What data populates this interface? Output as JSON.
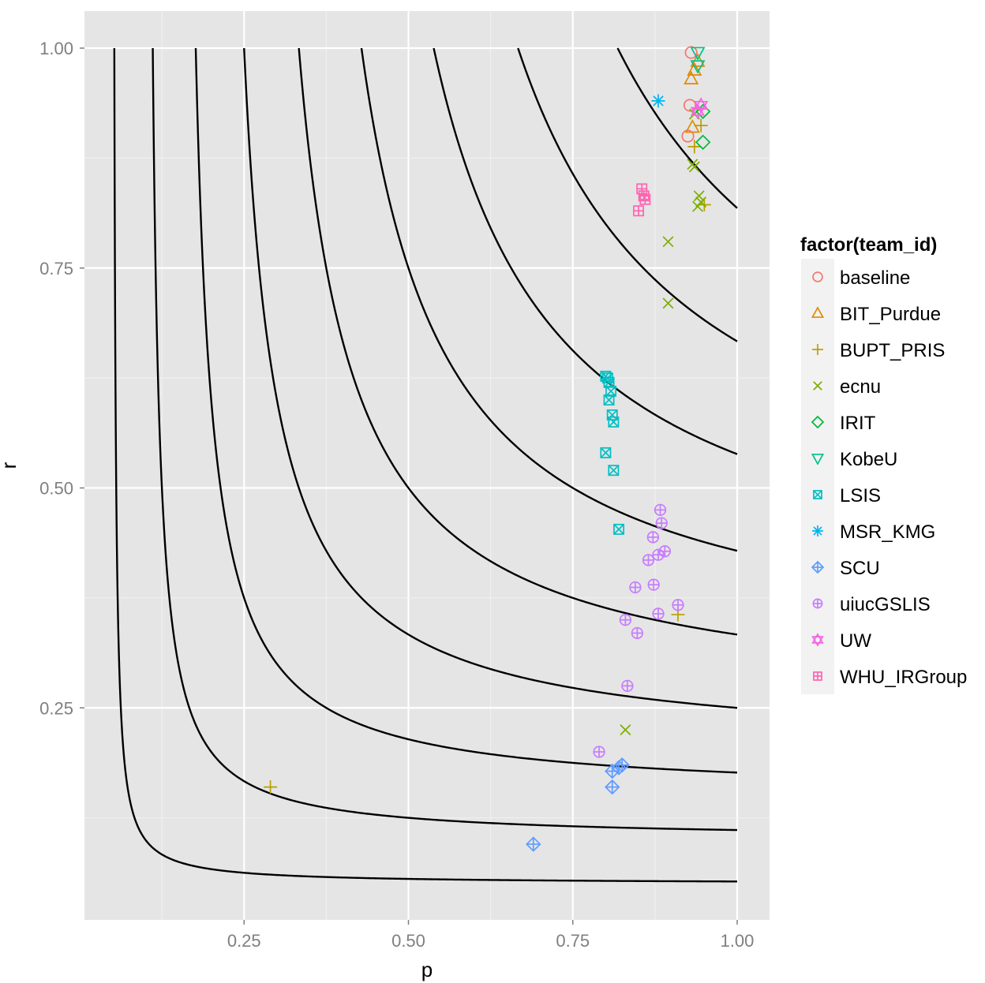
{
  "chart_data": {
    "type": "scatter",
    "title": "",
    "xlabel": "p",
    "ylabel": "r",
    "xlim": [
      0.0,
      1.045
    ],
    "ylim": [
      0.0,
      1.045
    ],
    "x_ticks": [
      0.25,
      0.5,
      0.75,
      1.0
    ],
    "x_tick_labels": [
      "0.25",
      "0.50",
      "0.75",
      "1.00"
    ],
    "y_ticks": [
      0.25,
      0.5,
      0.75,
      1.0
    ],
    "y_tick_labels": [
      "0.25",
      "0.50",
      "0.75",
      "1.00"
    ],
    "grid": true,
    "background": "#e5e5e5",
    "legend": {
      "title": "factor(team_id)",
      "placement": "right"
    },
    "iso_f_curves": {
      "description_values": "F-measure levels of the iso-curves",
      "levels": [
        0.1,
        0.2,
        0.3,
        0.4,
        0.5,
        0.6,
        0.7,
        0.8,
        0.9
      ],
      "color": "#000000"
    },
    "series": [
      {
        "name": "baseline",
        "color": "#F8766D",
        "shape": "circle",
        "points": [
          [
            0.93,
            0.995
          ],
          [
            0.928,
            0.935
          ],
          [
            0.925,
            0.9
          ]
        ]
      },
      {
        "name": "BIT_Purdue",
        "color": "#DE8C00",
        "shape": "triangle",
        "points": [
          [
            0.94,
            0.985
          ],
          [
            0.935,
            0.975
          ],
          [
            0.93,
            0.965
          ],
          [
            0.932,
            0.91
          ]
        ]
      },
      {
        "name": "BUPT_PRIS",
        "color": "#B79F00",
        "shape": "plus",
        "points": [
          [
            0.945,
            0.912
          ],
          [
            0.935,
            0.888
          ],
          [
            0.95,
            0.822
          ],
          [
            0.91,
            0.356
          ],
          [
            0.29,
            0.16
          ]
        ]
      },
      {
        "name": "ecnu",
        "color": "#7CAE00",
        "shape": "cross",
        "points": [
          [
            0.932,
            0.868
          ],
          [
            0.935,
            0.865
          ],
          [
            0.942,
            0.832
          ],
          [
            0.945,
            0.825
          ],
          [
            0.94,
            0.82
          ],
          [
            0.895,
            0.78
          ],
          [
            0.895,
            0.71
          ],
          [
            0.83,
            0.225
          ],
          [
            0.935,
            0.925
          ]
        ]
      },
      {
        "name": "IRIT",
        "color": "#00BA38",
        "shape": "diamond",
        "points": [
          [
            0.948,
            0.928
          ],
          [
            0.948,
            0.893
          ]
        ]
      },
      {
        "name": "KobeU",
        "color": "#00C08B",
        "shape": "triangle-down",
        "points": [
          [
            0.94,
            0.995
          ],
          [
            0.94,
            0.98
          ]
        ]
      },
      {
        "name": "LSIS",
        "color": "#00BFC4",
        "shape": "square-cross",
        "points": [
          [
            0.8,
            0.627
          ],
          [
            0.803,
            0.625
          ],
          [
            0.805,
            0.62
          ],
          [
            0.808,
            0.61
          ],
          [
            0.805,
            0.6
          ],
          [
            0.81,
            0.583
          ],
          [
            0.812,
            0.575
          ],
          [
            0.8,
            0.54
          ],
          [
            0.812,
            0.52
          ],
          [
            0.82,
            0.453
          ]
        ]
      },
      {
        "name": "MSR_KMG",
        "color": "#00B4F0",
        "shape": "asterisk",
        "points": [
          [
            0.88,
            0.94
          ]
        ]
      },
      {
        "name": "SCU",
        "color": "#619CFF",
        "shape": "diamond-plus",
        "points": [
          [
            0.825,
            0.185
          ],
          [
            0.82,
            0.182
          ],
          [
            0.81,
            0.178
          ],
          [
            0.81,
            0.16
          ],
          [
            0.69,
            0.095
          ]
        ]
      },
      {
        "name": "uiucGSLIS",
        "color": "#C77CFF",
        "shape": "circle-plus",
        "points": [
          [
            0.883,
            0.475
          ],
          [
            0.885,
            0.46
          ],
          [
            0.872,
            0.444
          ],
          [
            0.89,
            0.428
          ],
          [
            0.88,
            0.424
          ],
          [
            0.865,
            0.418
          ],
          [
            0.873,
            0.39
          ],
          [
            0.845,
            0.387
          ],
          [
            0.91,
            0.367
          ],
          [
            0.88,
            0.357
          ],
          [
            0.83,
            0.35
          ],
          [
            0.848,
            0.335
          ],
          [
            0.833,
            0.275
          ],
          [
            0.79,
            0.2
          ]
        ]
      },
      {
        "name": "UW",
        "color": "#F564E3",
        "shape": "star-of-david",
        "points": [
          [
            0.945,
            0.935
          ],
          [
            0.94,
            0.928
          ]
        ]
      },
      {
        "name": "WHU_IRGroup",
        "color": "#FF64B0",
        "shape": "square-plus",
        "points": [
          [
            0.855,
            0.84
          ],
          [
            0.858,
            0.832
          ],
          [
            0.86,
            0.828
          ],
          [
            0.85,
            0.815
          ]
        ]
      }
    ]
  }
}
